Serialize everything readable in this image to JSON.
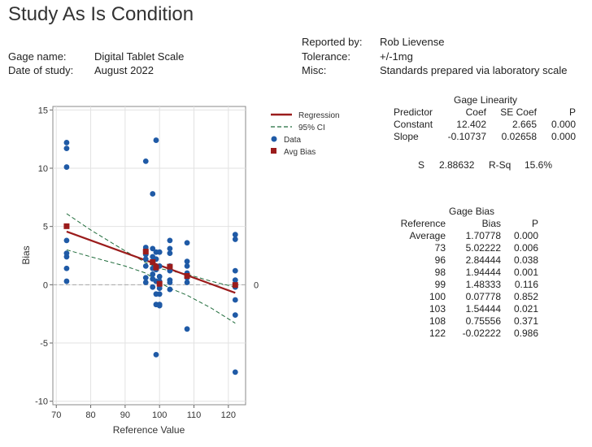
{
  "title": "Study As Is Condition",
  "header": {
    "gage_name_label": "Gage name:",
    "gage_name": "Digital Tablet Scale",
    "date_label": "Date of study:",
    "date": "August 2022",
    "reported_by_label": "Reported by:",
    "reported_by": "Rob Lievense",
    "tolerance_label": "Tolerance:",
    "tolerance": "+/-1mg",
    "misc_label": "Misc:",
    "misc": "Standards prepared via laboratory scale"
  },
  "linearity": {
    "title": "Gage Linearity",
    "col_predictor": "Predictor",
    "col_coef": "Coef",
    "col_secoef": "SE Coef",
    "col_p": "P",
    "rows": [
      {
        "name": "Constant",
        "coef": "12.402",
        "secoef": "2.665",
        "p": "0.000"
      },
      {
        "name": "Slope",
        "coef": "-0.10737",
        "secoef": "0.02658",
        "p": "0.000"
      }
    ],
    "s_label": "S",
    "s_value": "2.88632",
    "rsq_label": "R-Sq",
    "rsq_value": "15.6%"
  },
  "bias": {
    "title": "Gage Bias",
    "col_reference": "Reference",
    "col_bias": "Bias",
    "col_p": "P",
    "rows": [
      {
        "ref": "Average",
        "bias": "1.70778",
        "p": "0.000"
      },
      {
        "ref": "73",
        "bias": "5.02222",
        "p": "0.006"
      },
      {
        "ref": "96",
        "bias": "2.84444",
        "p": "0.038"
      },
      {
        "ref": "98",
        "bias": "1.94444",
        "p": "0.001"
      },
      {
        "ref": "99",
        "bias": "1.48333",
        "p": "0.116"
      },
      {
        "ref": "100",
        "bias": "0.07778",
        "p": "0.852"
      },
      {
        "ref": "103",
        "bias": "1.54444",
        "p": "0.021"
      },
      {
        "ref": "108",
        "bias": "0.75556",
        "p": "0.371"
      },
      {
        "ref": "122",
        "bias": "-0.02222",
        "p": "0.986"
      }
    ]
  },
  "legend": {
    "regression": "Regression",
    "ci": "95% CI",
    "data": "Data",
    "avg_bias": "Avg Bias"
  },
  "colors": {
    "regression": "#9b1c1c",
    "ci": "#1e6b3a",
    "data": "#1f5aa6",
    "avg_bias": "#9b1c1c",
    "grid": "#e2e2e2",
    "zero_line": "#a8a8a8"
  },
  "chart_data": {
    "type": "scatter",
    "xlabel": "Reference Value",
    "ylabel": "Bias",
    "xlim": [
      69,
      125
    ],
    "ylim": [
      -10.3,
      15.3
    ],
    "xticks": [
      70,
      80,
      90,
      100,
      110,
      120
    ],
    "yticks": [
      -10,
      -5,
      0,
      5,
      10,
      15
    ],
    "zero_label": "0",
    "grid": true,
    "regression": {
      "intercept": 12.402,
      "slope": -0.10737,
      "x_range": [
        73,
        122
      ]
    },
    "ci_upper": {
      "x": [
        73,
        80,
        90,
        96,
        100,
        103,
        108,
        115,
        122
      ],
      "y": [
        6.1,
        4.7,
        2.9,
        1.9,
        1.4,
        1.2,
        0.9,
        0.3,
        -0.2
      ]
    },
    "ci_lower": {
      "x": [
        73,
        80,
        90,
        96,
        100,
        103,
        108,
        115,
        122
      ],
      "y": [
        3.0,
        2.4,
        1.6,
        1.0,
        0.2,
        -0.3,
        -0.9,
        -2.0,
        -3.3
      ]
    },
    "data_points": [
      {
        "x": 73,
        "y": 12.2
      },
      {
        "x": 73,
        "y": 11.7
      },
      {
        "x": 73,
        "y": 10.1
      },
      {
        "x": 73,
        "y": 3.8
      },
      {
        "x": 73,
        "y": 2.7
      },
      {
        "x": 73,
        "y": 2.4
      },
      {
        "x": 73,
        "y": 1.4
      },
      {
        "x": 73,
        "y": 0.3
      },
      {
        "x": 96,
        "y": 10.6
      },
      {
        "x": 96,
        "y": 3.2
      },
      {
        "x": 96,
        "y": 2.9
      },
      {
        "x": 96,
        "y": 2.6
      },
      {
        "x": 96,
        "y": 2.2
      },
      {
        "x": 96,
        "y": 1.6
      },
      {
        "x": 96,
        "y": 0.6
      },
      {
        "x": 96,
        "y": 0.2
      },
      {
        "x": 98,
        "y": 7.8
      },
      {
        "x": 98,
        "y": 3.1
      },
      {
        "x": 98,
        "y": 2.4
      },
      {
        "x": 98,
        "y": 1.9
      },
      {
        "x": 98,
        "y": 1.4
      },
      {
        "x": 98,
        "y": 0.9
      },
      {
        "x": 98,
        "y": 0.5
      },
      {
        "x": 98,
        "y": -0.2
      },
      {
        "x": 99,
        "y": 12.4
      },
      {
        "x": 99,
        "y": 2.8
      },
      {
        "x": 99,
        "y": 2.2
      },
      {
        "x": 99,
        "y": 1.3
      },
      {
        "x": 99,
        "y": 0.3
      },
      {
        "x": 99,
        "y": -0.8
      },
      {
        "x": 99,
        "y": -1.7
      },
      {
        "x": 99,
        "y": -6.0
      },
      {
        "x": 100,
        "y": 2.8
      },
      {
        "x": 100,
        "y": 1.6
      },
      {
        "x": 100,
        "y": 0.7
      },
      {
        "x": 100,
        "y": 0.3
      },
      {
        "x": 100,
        "y": -0.3
      },
      {
        "x": 100,
        "y": -0.8
      },
      {
        "x": 100,
        "y": -1.7
      },
      {
        "x": 100,
        "y": -1.8
      },
      {
        "x": 103,
        "y": 3.8
      },
      {
        "x": 103,
        "y": 3.1
      },
      {
        "x": 103,
        "y": 2.7
      },
      {
        "x": 103,
        "y": 1.6
      },
      {
        "x": 103,
        "y": 1.2
      },
      {
        "x": 103,
        "y": 0.4
      },
      {
        "x": 103,
        "y": 0.2
      },
      {
        "x": 103,
        "y": -0.4
      },
      {
        "x": 108,
        "y": 3.6
      },
      {
        "x": 108,
        "y": 2.0
      },
      {
        "x": 108,
        "y": 1.6
      },
      {
        "x": 108,
        "y": 1.0
      },
      {
        "x": 108,
        "y": 0.6
      },
      {
        "x": 108,
        "y": 0.2
      },
      {
        "x": 108,
        "y": -3.8
      },
      {
        "x": 122,
        "y": 4.3
      },
      {
        "x": 122,
        "y": 3.9
      },
      {
        "x": 122,
        "y": 1.2
      },
      {
        "x": 122,
        "y": 0.4
      },
      {
        "x": 122,
        "y": -0.2
      },
      {
        "x": 122,
        "y": -1.3
      },
      {
        "x": 122,
        "y": -2.6
      },
      {
        "x": 122,
        "y": -7.5
      }
    ],
    "avg_bias_points": [
      {
        "x": 73,
        "y": 5.02222
      },
      {
        "x": 96,
        "y": 2.84444
      },
      {
        "x": 98,
        "y": 1.94444
      },
      {
        "x": 99,
        "y": 1.48333
      },
      {
        "x": 100,
        "y": 0.07778
      },
      {
        "x": 103,
        "y": 1.54444
      },
      {
        "x": 108,
        "y": 0.75556
      },
      {
        "x": 122,
        "y": -0.02222
      }
    ]
  }
}
